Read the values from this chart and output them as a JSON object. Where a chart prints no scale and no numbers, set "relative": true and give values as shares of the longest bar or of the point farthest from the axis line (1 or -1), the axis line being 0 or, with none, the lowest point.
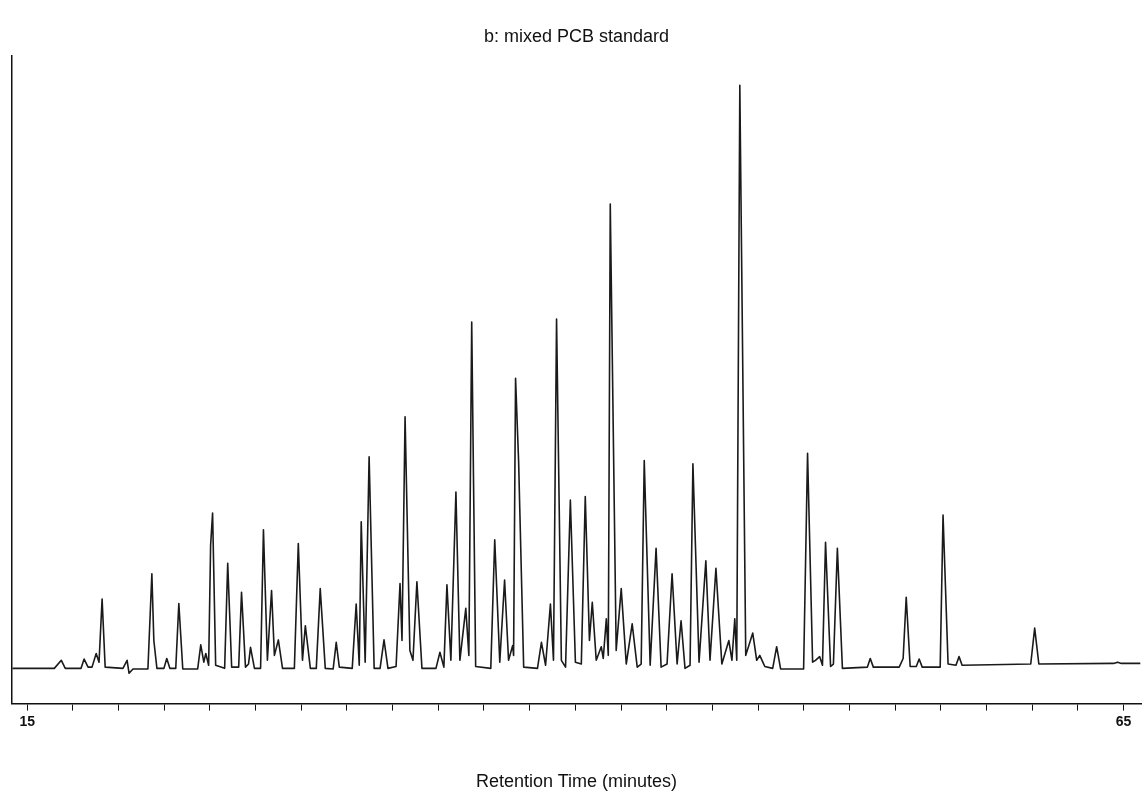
{
  "chart_data": {
    "type": "line",
    "title": "b: mixed PCB standard",
    "xlabel": "Retention Time (minutes)",
    "relative": true,
    "tick_labels": "x",
    "xlim": [
      14.3,
      65.8
    ],
    "xticks": [
      15,
      {
        "value": 17.08,
        "label": null
      },
      {
        "value": 19.17,
        "label": null
      },
      {
        "value": 21.25,
        "label": null
      },
      {
        "value": 23.33,
        "label": null
      },
      {
        "value": 25.42,
        "label": null
      },
      {
        "value": 27.5,
        "label": null
      },
      {
        "value": 29.58,
        "label": null
      },
      {
        "value": 31.67,
        "label": null
      },
      {
        "value": 33.75,
        "label": null
      },
      {
        "value": 35.83,
        "label": null
      },
      {
        "value": 37.92,
        "label": null
      },
      {
        "value": 40,
        "label": null
      },
      {
        "value": 42.08,
        "label": null
      },
      {
        "value": 44.17,
        "label": null
      },
      {
        "value": 46.25,
        "label": null
      },
      {
        "value": 48.33,
        "label": null
      },
      {
        "value": 50.42,
        "label": null
      },
      {
        "value": 52.5,
        "label": null
      },
      {
        "value": 54.58,
        "label": null
      },
      {
        "value": 56.67,
        "label": null
      },
      {
        "value": 58.75,
        "label": null
      },
      {
        "value": 60.83,
        "label": null
      },
      {
        "value": 62.92,
        "label": null
      },
      65
    ],
    "x": [
      14.32,
      16.23,
      16.55,
      16.73,
      17.45,
      17.59,
      17.77,
      17.95,
      18.14,
      18.27,
      18.41,
      18.55,
      19.36,
      19.55,
      19.64,
      19.82,
      20.5,
      20.68,
      20.77,
      20.91,
      21.23,
      21.36,
      21.5,
      21.77,
      21.91,
      22.09,
      22.77,
      22.91,
      23.05,
      23.14,
      23.27,
      23.36,
      23.45,
      23.59,
      24.0,
      24.14,
      24.32,
      24.64,
      24.77,
      24.95,
      25.09,
      25.18,
      25.36,
      25.64,
      25.77,
      25.95,
      26.14,
      26.27,
      26.45,
      26.64,
      27.18,
      27.36,
      27.55,
      27.68,
      27.91,
      28.18,
      28.36,
      28.59,
      28.95,
      29.09,
      29.23,
      29.82,
      30.0,
      30.14,
      30.23,
      30.41,
      30.59,
      30.82,
      31.09,
      31.27,
      31.45,
      31.82,
      32.0,
      32.09,
      32.23,
      32.45,
      32.59,
      32.77,
      33.0,
      33.64,
      33.82,
      34.0,
      34.14,
      34.32,
      34.55,
      34.73,
      35.0,
      35.14,
      35.27,
      35.45,
      36.14,
      36.32,
      36.55,
      36.77,
      36.95,
      37.14,
      37.18,
      37.27,
      37.41,
      37.64,
      38.27,
      38.45,
      38.64,
      38.86,
      39.0,
      39.14,
      39.36,
      39.55,
      39.77,
      40.0,
      40.27,
      40.45,
      40.64,
      40.77,
      40.95,
      41.18,
      41.27,
      41.41,
      41.5,
      41.59,
      41.86,
      42.09,
      42.32,
      42.59,
      42.82,
      43.0,
      43.14,
      43.41,
      43.68,
      43.91,
      44.18,
      44.41,
      44.64,
      44.82,
      45.0,
      45.23,
      45.36,
      45.64,
      45.95,
      46.14,
      46.41,
      46.68,
      47.0,
      47.14,
      47.27,
      47.36,
      47.5,
      47.77,
      48.09,
      48.27,
      48.41,
      48.64,
      49.0,
      49.18,
      49.36,
      50.41,
      50.59,
      50.82,
      50.95,
      51.14,
      51.27,
      51.41,
      51.64,
      51.77,
      51.95,
      52.18,
      53.32,
      53.45,
      53.59,
      54.77,
      54.95,
      55.09,
      55.27,
      55.55,
      55.68,
      55.82,
      56.64,
      56.77,
      57.0,
      57.36,
      57.5,
      57.64,
      60.77,
      60.95,
      61.14,
      64.55,
      64.73,
      64.91,
      65.77
    ],
    "series": [
      {
        "color": "#1a1a1a",
        "values": [
          0.057,
          0.057,
          0.07,
          0.057,
          0.057,
          0.072,
          0.059,
          0.059,
          0.081,
          0.067,
          0.169,
          0.059,
          0.057,
          0.07,
          0.049,
          0.056,
          0.056,
          0.21,
          0.102,
          0.057,
          0.057,
          0.073,
          0.057,
          0.057,
          0.162,
          0.056,
          0.056,
          0.095,
          0.067,
          0.081,
          0.062,
          0.256,
          0.308,
          0.062,
          0.057,
          0.227,
          0.059,
          0.059,
          0.18,
          0.059,
          0.064,
          0.091,
          0.057,
          0.057,
          0.281,
          0.07,
          0.183,
          0.078,
          0.103,
          0.057,
          0.057,
          0.259,
          0.07,
          0.126,
          0.057,
          0.057,
          0.186,
          0.057,
          0.056,
          0.099,
          0.059,
          0.057,
          0.161,
          0.062,
          0.294,
          0.067,
          0.399,
          0.057,
          0.057,
          0.103,
          0.057,
          0.06,
          0.194,
          0.102,
          0.464,
          0.086,
          0.07,
          0.197,
          0.057,
          0.057,
          0.083,
          0.059,
          0.192,
          0.07,
          0.342,
          0.07,
          0.154,
          0.078,
          0.617,
          0.06,
          0.057,
          0.265,
          0.067,
          0.2,
          0.07,
          0.094,
          0.078,
          0.526,
          0.391,
          0.059,
          0.057,
          0.099,
          0.062,
          0.161,
          0.07,
          0.622,
          0.07,
          0.059,
          0.329,
          0.067,
          0.064,
          0.335,
          0.102,
          0.164,
          0.07,
          0.092,
          0.073,
          0.137,
          0.078,
          0.808,
          0.086,
          0.186,
          0.064,
          0.129,
          0.059,
          0.064,
          0.393,
          0.062,
          0.251,
          0.059,
          0.064,
          0.21,
          0.064,
          0.134,
          0.057,
          0.062,
          0.388,
          0.067,
          0.231,
          0.07,
          0.219,
          0.064,
          0.102,
          0.07,
          0.137,
          0.07,
          1,
          0.078,
          0.114,
          0.07,
          0.078,
          0.06,
          0.057,
          0.092,
          0.056,
          0.056,
          0.405,
          0.067,
          0.07,
          0.076,
          0.062,
          0.261,
          0.06,
          0.064,
          0.251,
          0.057,
          0.059,
          0.073,
          0.059,
          0.059,
          0.073,
          0.172,
          0.06,
          0.06,
          0.072,
          0.059,
          0.059,
          0.305,
          0.064,
          0.062,
          0.076,
          0.062,
          0.064,
          0.122,
          0.064,
          0.065,
          0.067,
          0.065,
          0.065
        ]
      }
    ]
  }
}
